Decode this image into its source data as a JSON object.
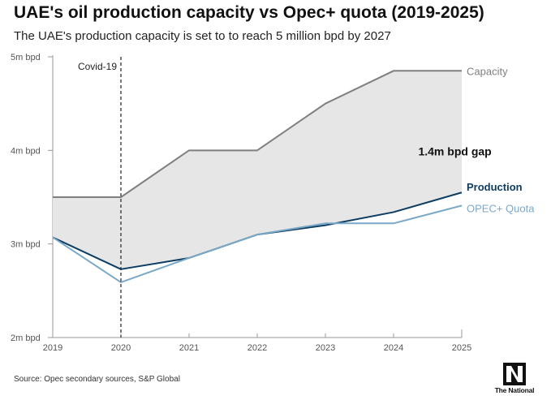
{
  "header": {
    "title": "UAE's oil production capacity vs Opec+ quota (2019-2025)",
    "subtitle": "The UAE's production capacity is set to to reach 5 million bpd by 2027"
  },
  "footer": {
    "source": "Source: Opec secondary sources, S&P Global",
    "logo_text": "The National"
  },
  "chart_data": {
    "type": "line",
    "title": "UAE's oil production capacity vs Opec+ quota (2019-2025)",
    "x": [
      2019,
      2020,
      2021,
      2022,
      2023,
      2024,
      2025
    ],
    "x_tick_labels": [
      "2019",
      "2020",
      "2021",
      "2022",
      "2023",
      "2024",
      "2025"
    ],
    "y_unit": "m bpd",
    "ylim": [
      2,
      5
    ],
    "y_ticks": [
      2,
      3,
      4,
      5
    ],
    "y_tick_labels": [
      "2m bpd",
      "3m bpd",
      "4m bpd",
      "5m bpd"
    ],
    "grid": false,
    "series": [
      {
        "name": "Capacity",
        "color": "#7f7f7f",
        "values": [
          3.5,
          3.5,
          4.0,
          4.0,
          4.5,
          4.85,
          4.85
        ]
      },
      {
        "name": "Production",
        "color": "#0d3d63",
        "values": [
          3.07,
          2.73,
          2.85,
          3.1,
          3.2,
          3.34,
          3.55
        ]
      },
      {
        "name": "OPEC+ Quota",
        "color": "#7aa8c8",
        "values": [
          3.07,
          2.59,
          2.85,
          3.1,
          3.22,
          3.22,
          3.41
        ]
      }
    ],
    "shaded_area": {
      "between": [
        "Capacity",
        "Production"
      ],
      "color": "#e6e6e6"
    },
    "annotations": [
      {
        "text": "Covid-19",
        "x": 2020,
        "type": "dashed-vline"
      },
      {
        "text": "1.4m bpd gap",
        "x": 2024.9,
        "y": 3.99
      }
    ]
  }
}
